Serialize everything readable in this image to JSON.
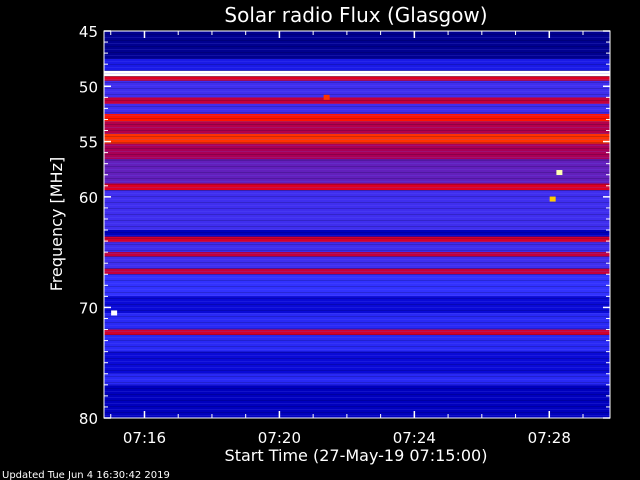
{
  "chart_data": {
    "type": "heatmap",
    "title": "Solar radio Flux (Glasgow)",
    "xlabel": "Start Time (27-May-19 07:15:00)",
    "ylabel": "Frequency [MHz]",
    "ylim": [
      45,
      80
    ],
    "y_reversed": true,
    "xlim_minutes": [
      0,
      15
    ],
    "x_ticks": [
      {
        "label": "07:16",
        "minute": 1.2
      },
      {
        "label": "07:20",
        "minute": 5.2
      },
      {
        "label": "07:24",
        "minute": 9.2
      },
      {
        "label": "07:28",
        "minute": 13.2
      }
    ],
    "y_ticks": [
      45,
      50,
      55,
      60,
      70,
      80
    ],
    "colormap": [
      "#000033",
      "#0000cc",
      "#3333ff",
      "#aa0055",
      "#ff0000",
      "#ffff00",
      "#ffffff"
    ],
    "bands": [
      {
        "freq_start": 45.0,
        "freq_end": 47.5,
        "intensity": 0.1
      },
      {
        "freq_start": 47.5,
        "freq_end": 48.6,
        "intensity": 0.25
      },
      {
        "freq_start": 48.6,
        "freq_end": 49.1,
        "intensity": 1.0
      },
      {
        "freq_start": 49.1,
        "freq_end": 49.5,
        "intensity": 0.6
      },
      {
        "freq_start": 49.5,
        "freq_end": 51.0,
        "intensity": 0.35
      },
      {
        "freq_start": 51.0,
        "freq_end": 51.6,
        "intensity": 0.55
      },
      {
        "freq_start": 51.6,
        "freq_end": 52.5,
        "intensity": 0.35
      },
      {
        "freq_start": 52.5,
        "freq_end": 53.2,
        "intensity": 0.68
      },
      {
        "freq_start": 53.2,
        "freq_end": 54.3,
        "intensity": 0.52
      },
      {
        "freq_start": 54.3,
        "freq_end": 55.2,
        "intensity": 0.7
      },
      {
        "freq_start": 55.2,
        "freq_end": 56.6,
        "intensity": 0.5
      },
      {
        "freq_start": 56.6,
        "freq_end": 58.8,
        "intensity": 0.4
      },
      {
        "freq_start": 58.8,
        "freq_end": 59.4,
        "intensity": 0.6
      },
      {
        "freq_start": 59.4,
        "freq_end": 63.0,
        "intensity": 0.35
      },
      {
        "freq_start": 63.0,
        "freq_end": 63.6,
        "intensity": 0.15
      },
      {
        "freq_start": 63.6,
        "freq_end": 64.1,
        "intensity": 0.58
      },
      {
        "freq_start": 64.1,
        "freq_end": 65.0,
        "intensity": 0.35
      },
      {
        "freq_start": 65.0,
        "freq_end": 65.4,
        "intensity": 0.55
      },
      {
        "freq_start": 65.4,
        "freq_end": 66.5,
        "intensity": 0.35
      },
      {
        "freq_start": 66.5,
        "freq_end": 67.0,
        "intensity": 0.55
      },
      {
        "freq_start": 67.0,
        "freq_end": 69.0,
        "intensity": 0.33
      },
      {
        "freq_start": 69.0,
        "freq_end": 70.5,
        "intensity": 0.2
      },
      {
        "freq_start": 70.5,
        "freq_end": 72.0,
        "intensity": 0.3
      },
      {
        "freq_start": 72.0,
        "freq_end": 72.5,
        "intensity": 0.58
      },
      {
        "freq_start": 72.5,
        "freq_end": 74.0,
        "intensity": 0.3
      },
      {
        "freq_start": 74.0,
        "freq_end": 76.0,
        "intensity": 0.2
      },
      {
        "freq_start": 76.0,
        "freq_end": 77.0,
        "intensity": 0.3
      },
      {
        "freq_start": 77.0,
        "freq_end": 80.0,
        "intensity": 0.15
      }
    ],
    "events": [
      {
        "minute": 13.5,
        "freq": 57.8,
        "intensity": 0.95
      },
      {
        "minute": 13.3,
        "freq": 60.2,
        "intensity": 0.8
      },
      {
        "minute": 0.3,
        "freq": 70.5,
        "intensity": 1.0
      },
      {
        "minute": 6.6,
        "freq": 51.0,
        "intensity": 0.7
      }
    ]
  },
  "footer": "Updated Tue Jun  4 16:30:42 2019"
}
